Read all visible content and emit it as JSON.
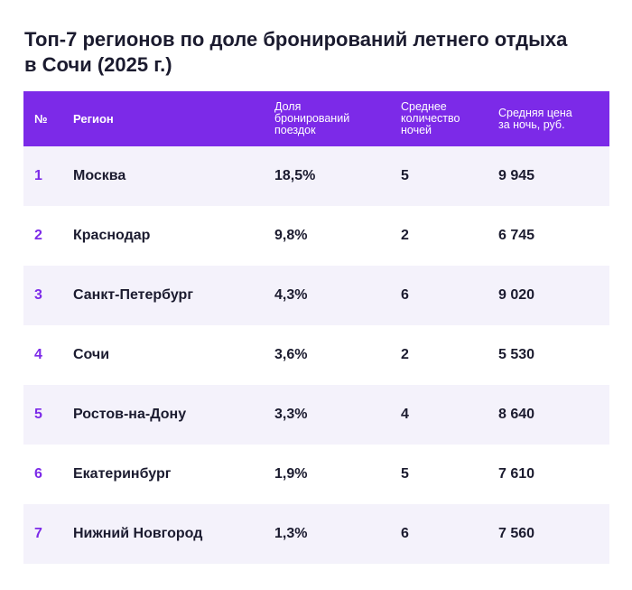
{
  "title": "Топ-7 регионов по доле бронирований летнего отдыха в Сочи (2025 г.)",
  "colors": {
    "header_bg": "#7c2ae8",
    "row_alt_bg": "#f4f2fb",
    "accent": "#7c2ae8"
  },
  "chart_data": {
    "type": "table",
    "title": "Топ-7 регионов по доле бронирований летнего отдыха в Сочи (2025 г.)",
    "columns": [
      "№",
      "Регион",
      "Доля\nбронирований\nпоездок",
      "Среднее\nколичество\nночей",
      "Средняя цена\nза ночь, руб."
    ],
    "rows": [
      [
        "1",
        "Москва",
        "18,5%",
        "5",
        "9 945"
      ],
      [
        "2",
        "Краснодар",
        "9,8%",
        "2",
        "6 745"
      ],
      [
        "3",
        "Санкт-Петербург",
        "4,3%",
        "6",
        "9 020"
      ],
      [
        "4",
        "Сочи",
        "3,6%",
        "2",
        "5 530"
      ],
      [
        "5",
        "Ростов-на-Дону",
        "3,3%",
        "4",
        "8 640"
      ],
      [
        "6",
        "Екатеринбург",
        "1,9%",
        "5",
        "7 610"
      ],
      [
        "7",
        "Нижний Новгород",
        "1,3%",
        "6",
        "7 560"
      ]
    ]
  }
}
